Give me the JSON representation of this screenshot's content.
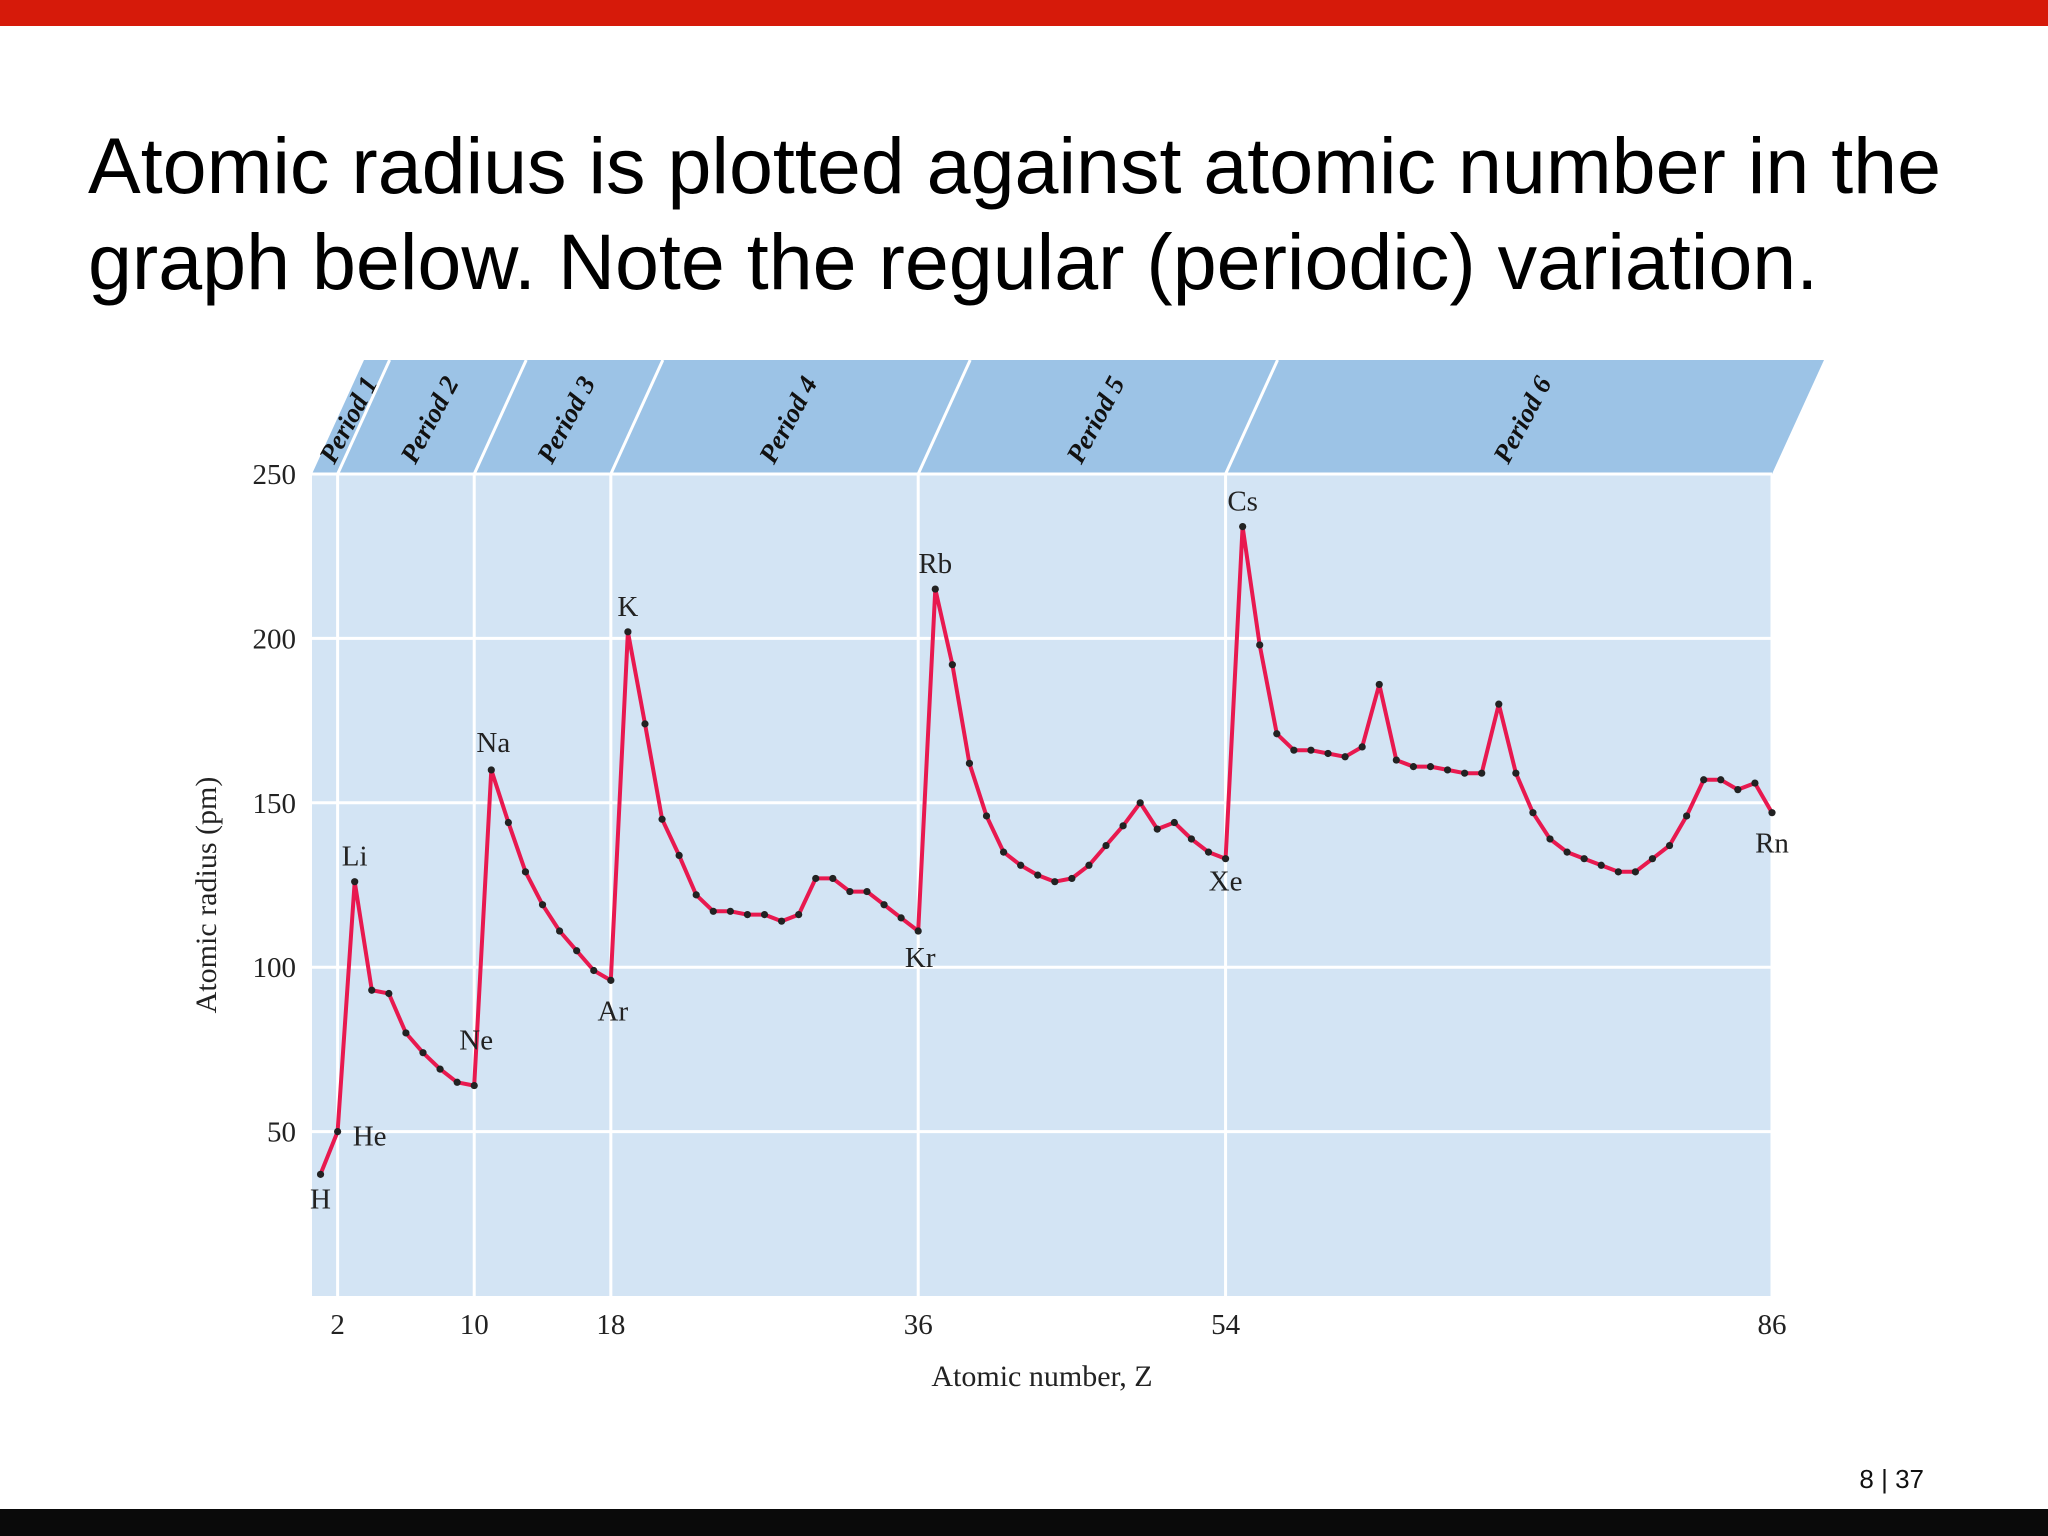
{
  "slide": {
    "title_line1": "Atomic radius is plotted against atomic number in the",
    "title_line2": "graph below. Note the regular (periodic) variation.",
    "page_number": "8 | 37"
  },
  "colors": {
    "accent_bar": "#d61a0a",
    "line": "#e8194f",
    "marker": "#222222",
    "plot_bg": "#d3e4f4",
    "header_band": "#9cc3e6"
  },
  "chart_data": {
    "type": "line",
    "xlabel": "Atomic number, Z",
    "ylabel": "Atomic radius (pm)",
    "xlim": [
      0.5,
      86
    ],
    "ylim": [
      0,
      250
    ],
    "x_ticks": [
      2,
      10,
      18,
      36,
      54,
      86
    ],
    "y_ticks": [
      50,
      100,
      150,
      200,
      250
    ],
    "periods": [
      {
        "label": "Period 1",
        "start": 0.5,
        "end": 2
      },
      {
        "label": "Period 2",
        "start": 2,
        "end": 10
      },
      {
        "label": "Period 3",
        "start": 10,
        "end": 18
      },
      {
        "label": "Period 4",
        "start": 18,
        "end": 36
      },
      {
        "label": "Period 5",
        "start": 36,
        "end": 54
      },
      {
        "label": "Period 6",
        "start": 54,
        "end": 86
      }
    ],
    "x": [
      1,
      2,
      3,
      4,
      5,
      6,
      7,
      8,
      9,
      10,
      11,
      12,
      13,
      14,
      15,
      16,
      17,
      18,
      19,
      20,
      21,
      22,
      23,
      24,
      25,
      26,
      27,
      28,
      29,
      30,
      31,
      32,
      33,
      34,
      35,
      36,
      37,
      38,
      39,
      40,
      41,
      42,
      43,
      44,
      45,
      46,
      47,
      48,
      49,
      50,
      51,
      52,
      53,
      54,
      55,
      56,
      57,
      58,
      59,
      60,
      61,
      62,
      63,
      64,
      65,
      66,
      67,
      68,
      69,
      70,
      71,
      72,
      73,
      74,
      75,
      76,
      77,
      78,
      79,
      80,
      81,
      82,
      83,
      84,
      85,
      86
    ],
    "y": [
      37,
      50,
      126,
      93,
      92,
      80,
      74,
      69,
      65,
      64,
      160,
      144,
      129,
      119,
      111,
      105,
      99,
      96,
      202,
      174,
      145,
      134,
      122,
      117,
      117,
      116,
      116,
      114,
      116,
      127,
      127,
      123,
      123,
      119,
      115,
      111,
      215,
      192,
      162,
      146,
      135,
      131,
      128,
      126,
      127,
      131,
      137,
      143,
      150,
      142,
      144,
      139,
      135,
      133,
      234,
      198,
      171,
      166,
      166,
      165,
      164,
      167,
      186,
      163,
      161,
      161,
      160,
      159,
      159,
      180,
      159,
      147,
      139,
      135,
      133,
      131,
      129,
      129,
      133,
      137,
      146,
      157,
      157,
      154,
      156,
      147
    ],
    "point_labels": [
      {
        "z": 1,
        "text": "H"
      },
      {
        "z": 2,
        "text": "He"
      },
      {
        "z": 3,
        "text": "Li"
      },
      {
        "z": 10,
        "text": "Ne"
      },
      {
        "z": 11,
        "text": "Na"
      },
      {
        "z": 18,
        "text": "Ar"
      },
      {
        "z": 19,
        "text": "K"
      },
      {
        "z": 36,
        "text": "Kr"
      },
      {
        "z": 37,
        "text": "Rb"
      },
      {
        "z": 54,
        "text": "Xe"
      },
      {
        "z": 55,
        "text": "Cs"
      },
      {
        "z": 86,
        "text": "Rn"
      }
    ]
  }
}
